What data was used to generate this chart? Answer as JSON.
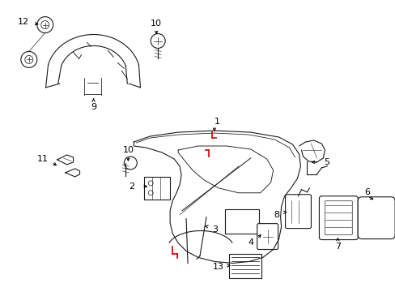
{
  "bg_color": "#ffffff",
  "fig_width": 4.89,
  "fig_height": 3.6,
  "dpi": 100,
  "lc": "#1a1a1a",
  "rc": "#cc0000",
  "fs": 7,
  "lw": 0.8
}
